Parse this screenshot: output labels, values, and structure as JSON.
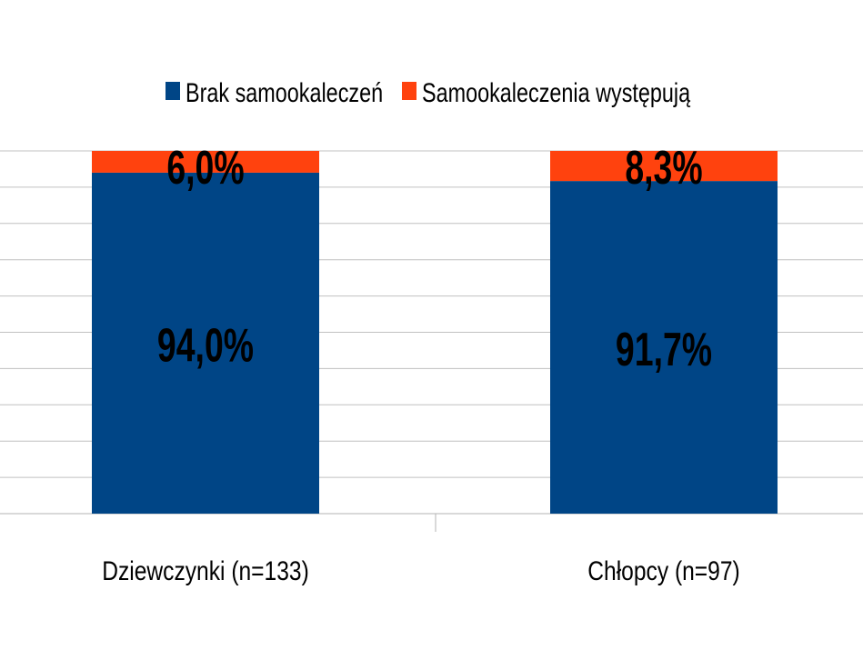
{
  "chart_data": {
    "type": "bar",
    "stacked": true,
    "percent_stacked": true,
    "title": "",
    "xlabel": "",
    "ylabel": "",
    "ylim": [
      0,
      100
    ],
    "grid": true,
    "legend_position": "top",
    "categories": [
      "Dziewczynki (n=133)",
      "Chłopcy (n=97)"
    ],
    "series": [
      {
        "name": "Brak samookaleczeń",
        "color": "#004586",
        "values": [
          94.0,
          91.7
        ],
        "labels": [
          "94,0%",
          "91,7%"
        ]
      },
      {
        "name": "Samookaleczenia występują",
        "color": "#ff420e",
        "values": [
          6.0,
          8.3
        ],
        "labels": [
          "6,0%",
          "8,3%"
        ]
      }
    ]
  }
}
